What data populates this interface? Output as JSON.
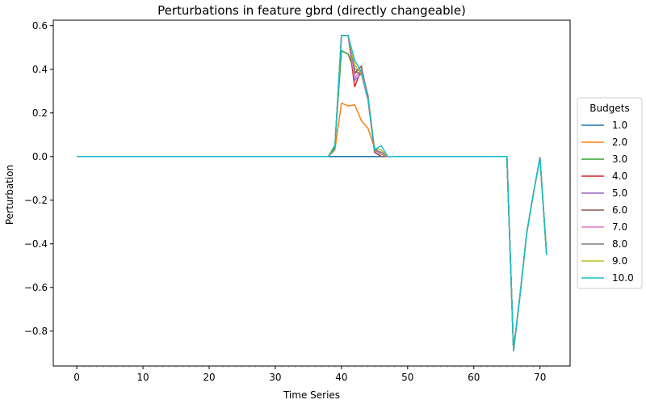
{
  "chart_data": {
    "type": "line",
    "title": "Perturbations in feature gbrd (directly changeable)",
    "xlabel": "Time Series",
    "ylabel": "Perturbation",
    "xlim": [
      -3.55,
      74.55
    ],
    "ylim": [
      -0.96,
      0.625
    ],
    "xticks": [
      0,
      10,
      20,
      30,
      40,
      50,
      60,
      70
    ],
    "yticks": [
      -0.8,
      -0.6,
      -0.4,
      -0.2,
      0.0,
      0.2,
      0.4,
      0.6
    ],
    "ytick_labels": [
      "−0.8",
      "−0.6",
      "−0.4",
      "−0.2",
      "0.0",
      "0.2",
      "0.4",
      "0.6"
    ],
    "grid": false,
    "legend": {
      "title": "Budgets",
      "placement": "center-right, outside plot"
    },
    "x": [
      0,
      38,
      39,
      40,
      41,
      42,
      43,
      44,
      45,
      46,
      47,
      48,
      65,
      66,
      67,
      68,
      69,
      70,
      71
    ],
    "series": [
      {
        "name": "1.0",
        "color": "#1f77b4",
        "values": [
          0,
          0,
          0,
          0,
          0,
          0,
          0,
          0,
          0,
          0,
          0,
          0,
          0,
          -0.89,
          -0.63,
          -0.35,
          -0.17,
          -0.005,
          -0.45
        ]
      },
      {
        "name": "2.0",
        "color": "#ff7f0e",
        "values": [
          0,
          0,
          0.03,
          0.245,
          0.232,
          0.237,
          0.165,
          0.13,
          0.04,
          0.01,
          0,
          0,
          0,
          -0.89,
          -0.63,
          -0.35,
          -0.17,
          -0.005,
          -0.45
        ]
      },
      {
        "name": "3.0",
        "color": "#2ca02c",
        "values": [
          0,
          0,
          0.05,
          0.485,
          0.47,
          0.39,
          0.38,
          0.28,
          0.03,
          0.01,
          0,
          0,
          0,
          -0.89,
          -0.63,
          -0.35,
          -0.17,
          -0.005,
          -0.45
        ]
      },
      {
        "name": "4.0",
        "color": "#d62728",
        "values": [
          0,
          0,
          0.04,
          0.555,
          0.555,
          0.32,
          0.4,
          0.28,
          0.02,
          0,
          0,
          0,
          0,
          -0.89,
          -0.63,
          -0.35,
          -0.17,
          -0.005,
          -0.45
        ]
      },
      {
        "name": "5.0",
        "color": "#9467bd",
        "values": [
          0,
          0,
          0.04,
          0.555,
          0.555,
          0.35,
          0.38,
          0.26,
          0.02,
          0,
          0,
          0,
          0,
          -0.89,
          -0.63,
          -0.35,
          -0.17,
          -0.005,
          -0.45
        ]
      },
      {
        "name": "6.0",
        "color": "#8c564b",
        "values": [
          0,
          0,
          0.04,
          0.555,
          0.555,
          0.38,
          0.415,
          0.27,
          0.02,
          0,
          0,
          0,
          0,
          -0.89,
          -0.63,
          -0.35,
          -0.17,
          -0.005,
          -0.45
        ]
      },
      {
        "name": "7.0",
        "color": "#e377c2",
        "values": [
          0,
          0,
          0.04,
          0.555,
          0.555,
          0.36,
          0.4,
          0.27,
          0.03,
          0.01,
          0,
          0,
          0,
          -0.89,
          -0.63,
          -0.35,
          -0.17,
          -0.005,
          -0.45
        ]
      },
      {
        "name": "8.0",
        "color": "#7f7f7f",
        "values": [
          0,
          0,
          0.04,
          0.555,
          0.555,
          0.4,
          0.39,
          0.27,
          0.03,
          0.02,
          0,
          0,
          0,
          -0.89,
          -0.63,
          -0.35,
          -0.17,
          -0.005,
          -0.45
        ]
      },
      {
        "name": "9.0",
        "color": "#bcbd22",
        "values": [
          0,
          0,
          0.04,
          0.555,
          0.555,
          0.42,
          0.38,
          0.27,
          0.04,
          0.03,
          0,
          0,
          0,
          -0.89,
          -0.63,
          -0.35,
          -0.17,
          -0.005,
          -0.45
        ]
      },
      {
        "name": "10.0",
        "color": "#17becf",
        "values": [
          0,
          0,
          0.04,
          0.555,
          0.555,
          0.44,
          0.39,
          0.27,
          0.03,
          0.05,
          0,
          0,
          0,
          -0.89,
          -0.63,
          -0.35,
          -0.17,
          -0.005,
          -0.45
        ]
      }
    ]
  }
}
